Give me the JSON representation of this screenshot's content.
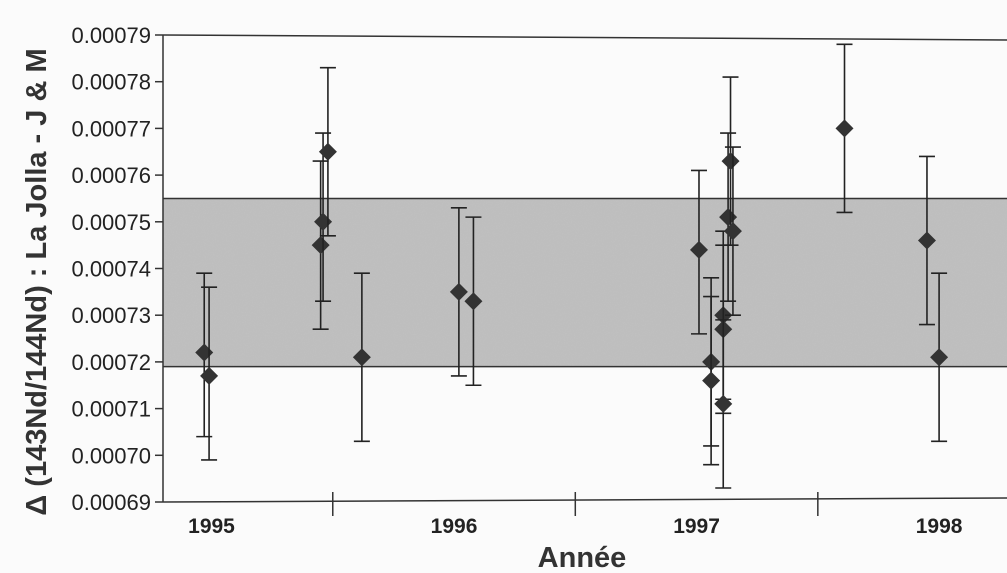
{
  "chart_data": {
    "type": "scatter",
    "title": "",
    "xlabel": "Année",
    "ylabel": "Δ (143Nd/144Nd) : La Jolla - J & M",
    "ylim": [
      0.00069,
      0.00079
    ],
    "xlim": [
      1994.8,
      1998.28
    ],
    "grid": false,
    "y_ticks": [
      "0.00069",
      "0.00070",
      "0.00071",
      "0.00072",
      "0.00073",
      "0.00074",
      "0.00075",
      "0.00076",
      "0.00077",
      "0.00078",
      "0.00079"
    ],
    "year_labels": [
      {
        "label": "1995",
        "x": 1995.0
      },
      {
        "label": "1996",
        "x": 1996.0
      },
      {
        "label": "1997",
        "x": 1997.0
      },
      {
        "label": "1998",
        "x": 1998.0
      }
    ],
    "year_boundaries": [
      1995.5,
      1996.5,
      1997.5
    ],
    "band": {
      "y_low": 0.000719,
      "y_high": 0.000755,
      "color": "#bdbdbd"
    },
    "marker_color": "#333333",
    "points": [
      {
        "x": 1994.97,
        "y": 0.000722,
        "err_low": 0.000704,
        "err_high": 0.000739
      },
      {
        "x": 1994.99,
        "y": 0.000717,
        "err_low": 0.000699,
        "err_high": 0.000736
      },
      {
        "x": 1995.45,
        "y": 0.000745,
        "err_low": 0.000727,
        "err_high": 0.000763
      },
      {
        "x": 1995.46,
        "y": 0.00075,
        "err_low": 0.000733,
        "err_high": 0.000769
      },
      {
        "x": 1995.48,
        "y": 0.000765,
        "err_low": 0.000747,
        "err_high": 0.000783
      },
      {
        "x": 1995.62,
        "y": 0.000721,
        "err_low": 0.000703,
        "err_high": 0.000739
      },
      {
        "x": 1996.02,
        "y": 0.000735,
        "err_low": 0.000717,
        "err_high": 0.000753
      },
      {
        "x": 1996.08,
        "y": 0.000733,
        "err_low": 0.000715,
        "err_high": 0.000751
      },
      {
        "x": 1997.01,
        "y": 0.000744,
        "err_low": 0.000726,
        "err_high": 0.000761
      },
      {
        "x": 1997.06,
        "y": 0.00072,
        "err_low": 0.000702,
        "err_high": 0.000738
      },
      {
        "x": 1997.06,
        "y": 0.000716,
        "err_low": 0.000698,
        "err_high": 0.000734
      },
      {
        "x": 1997.11,
        "y": 0.00073,
        "err_low": 0.000712,
        "err_high": 0.000748
      },
      {
        "x": 1997.11,
        "y": 0.000727,
        "err_low": 0.000709,
        "err_high": 0.000745
      },
      {
        "x": 1997.11,
        "y": 0.000711,
        "err_low": 0.000693,
        "err_high": 0.000729
      },
      {
        "x": 1997.13,
        "y": 0.000751,
        "err_low": 0.000733,
        "err_high": 0.000769
      },
      {
        "x": 1997.14,
        "y": 0.000763,
        "err_low": 0.000745,
        "err_high": 0.000781
      },
      {
        "x": 1997.15,
        "y": 0.000748,
        "err_low": 0.00073,
        "err_high": 0.000766
      },
      {
        "x": 1997.61,
        "y": 0.00077,
        "err_low": 0.000752,
        "err_high": 0.000788
      },
      {
        "x": 1997.95,
        "y": 0.000746,
        "err_low": 0.000728,
        "err_high": 0.000764
      },
      {
        "x": 1998.0,
        "y": 0.000721,
        "err_low": 0.000703,
        "err_high": 0.000739
      }
    ]
  }
}
